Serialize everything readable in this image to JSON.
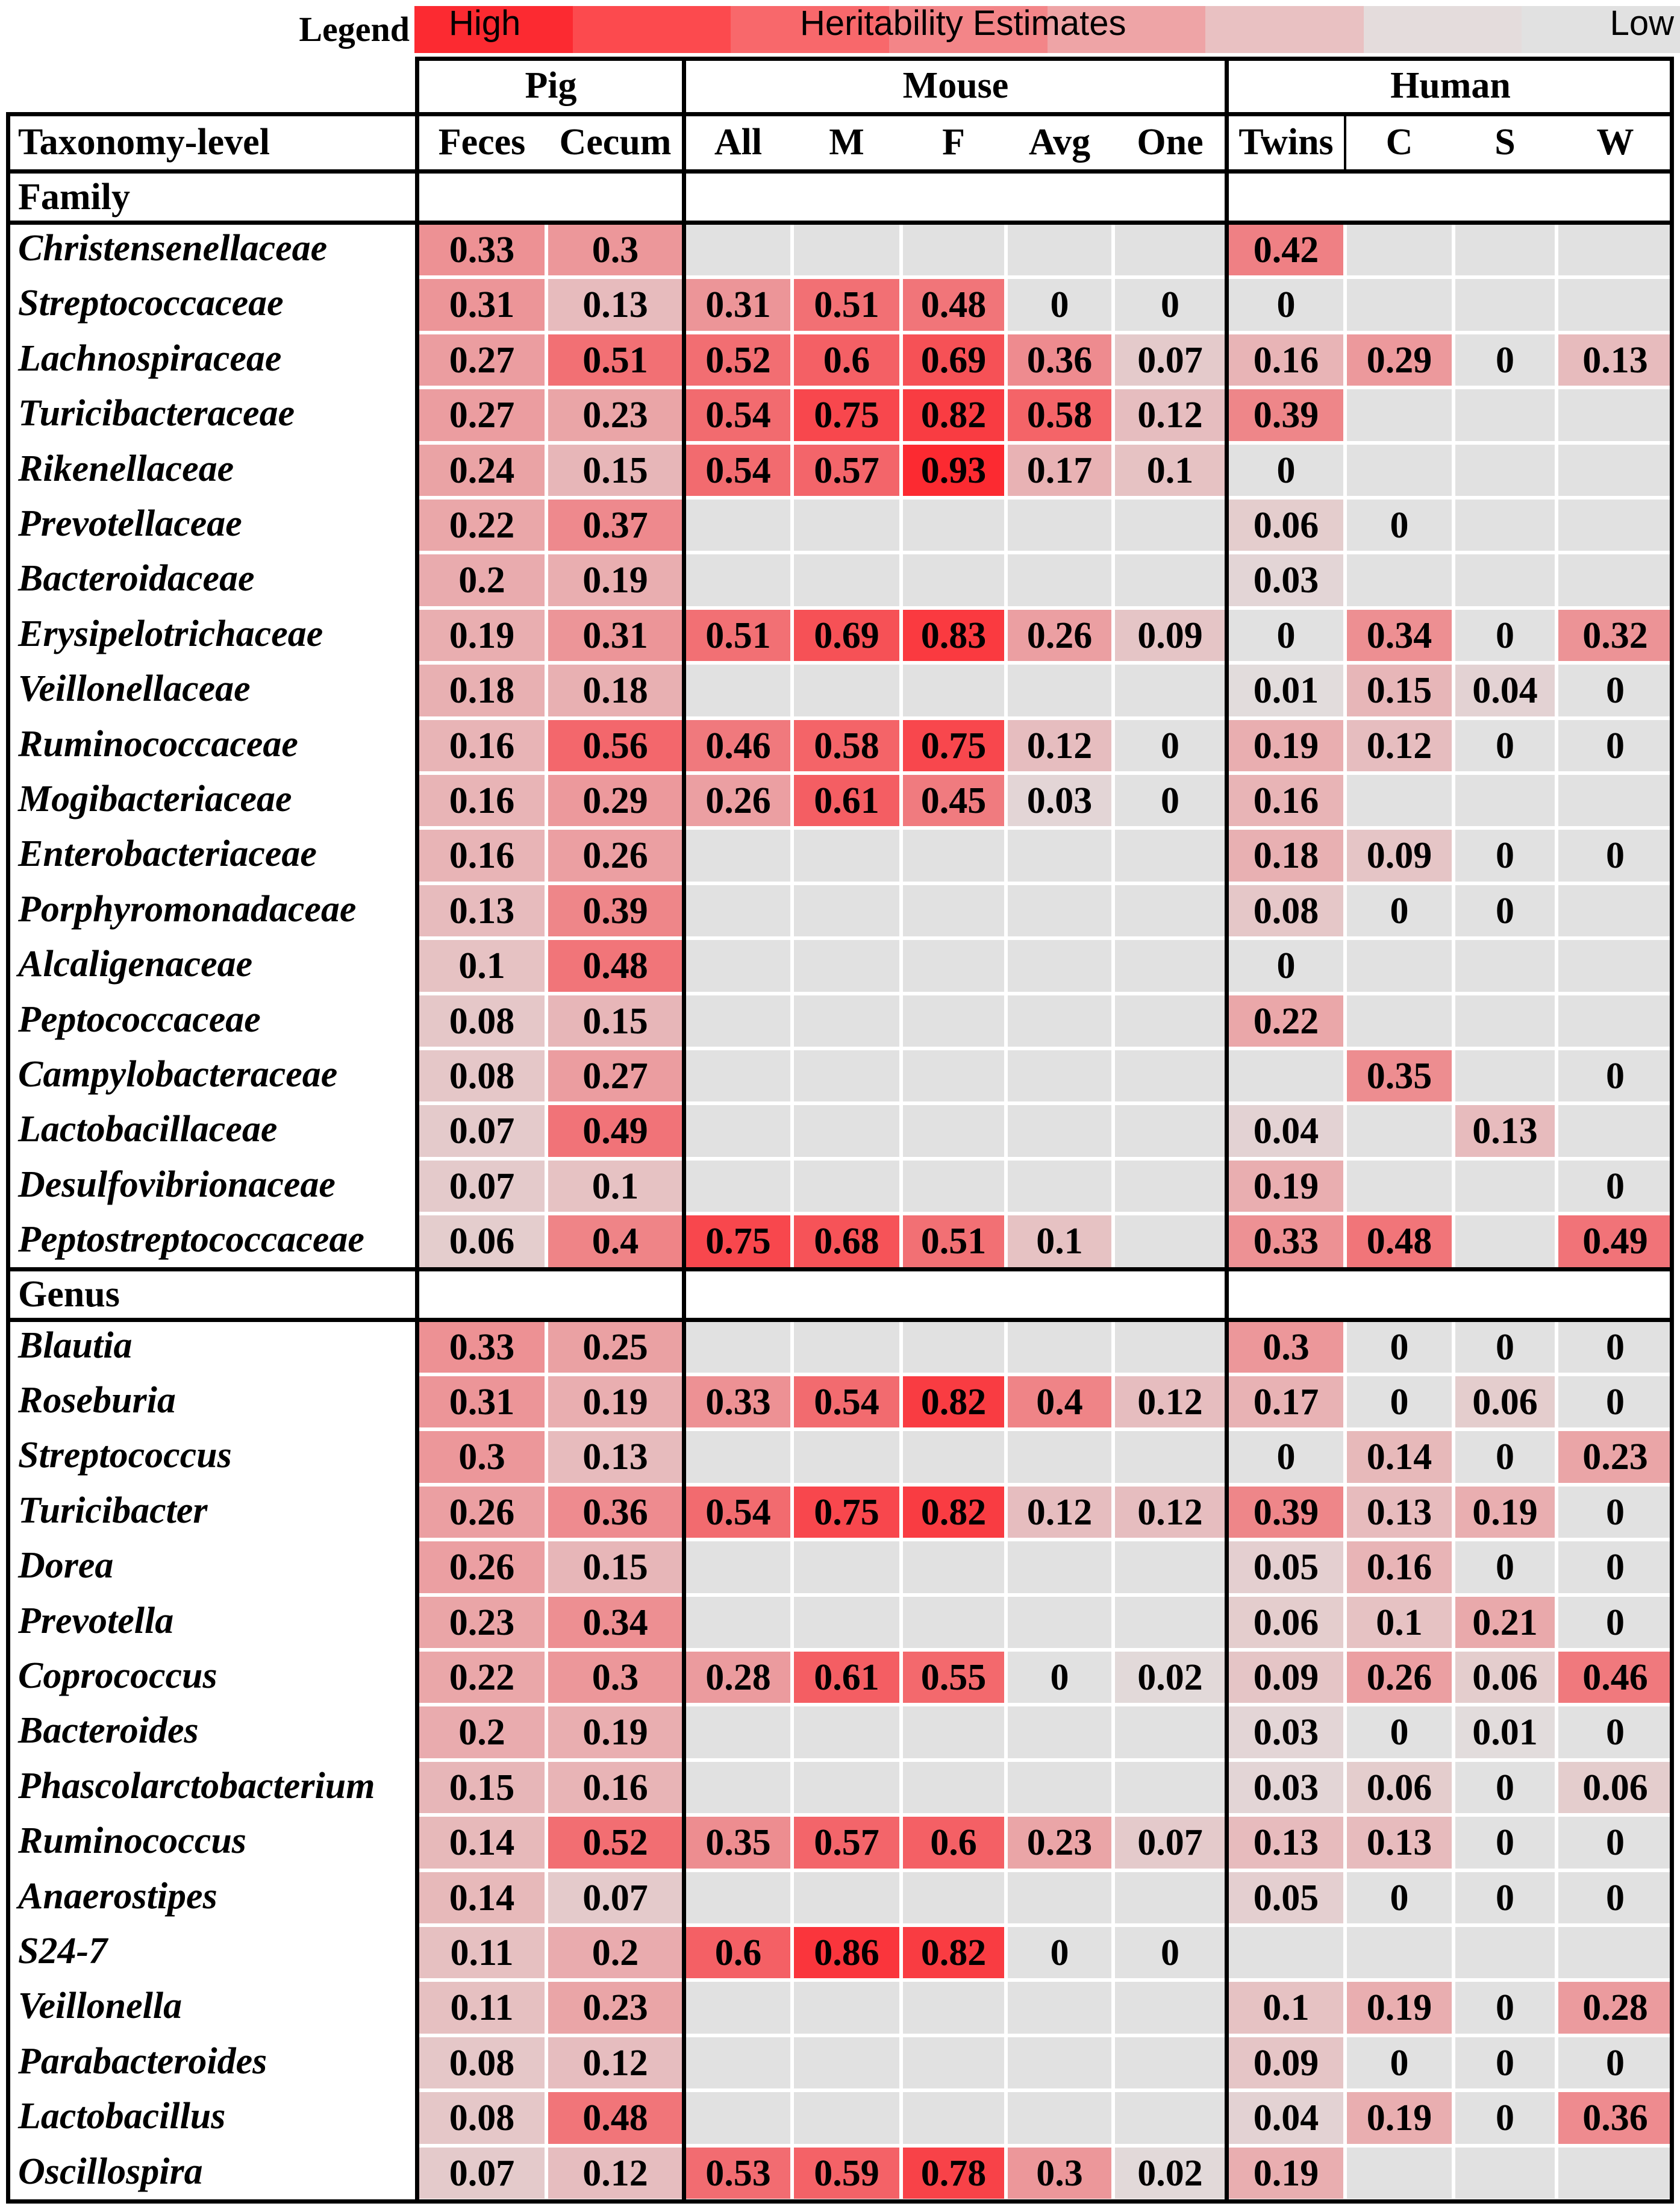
{
  "legend": {
    "label": "Legend",
    "high": "High",
    "title": "Heritability Estimates",
    "low": "Low",
    "colors": [
      "#fc2a31",
      "#fc4a4e",
      "#f8686b",
      "#f38588",
      "#eea4a6",
      "#e9c1c2",
      "#e4dcdc",
      "#e1e1e1"
    ]
  },
  "table": {
    "groups": [
      "Pig",
      "Mouse",
      "Human"
    ],
    "header": [
      "Taxonomy-level",
      "Feces",
      "Cecum",
      "All",
      "M",
      "F",
      "Avg",
      "One",
      "Twins",
      "C",
      "S",
      "W"
    ],
    "sections": [
      {
        "title": "Family",
        "rows": [
          {
            "taxon": "Christensenellaceae",
            "values": [
              "0.33",
              "0.3",
              "",
              "",
              "",
              "",
              "",
              "0.42",
              "",
              "",
              ""
            ]
          },
          {
            "taxon": "Streptococcaceae",
            "values": [
              "0.31",
              "0.13",
              "0.31",
              "0.51",
              "0.48",
              "0",
              "0",
              "0",
              "",
              "",
              ""
            ]
          },
          {
            "taxon": "Lachnospiraceae",
            "values": [
              "0.27",
              "0.51",
              "0.52",
              "0.6",
              "0.69",
              "0.36",
              "0.07",
              "0.16",
              "0.29",
              "0",
              "0.13"
            ]
          },
          {
            "taxon": "Turicibacteraceae",
            "values": [
              "0.27",
              "0.23",
              "0.54",
              "0.75",
              "0.82",
              "0.58",
              "0.12",
              "0.39",
              "",
              "",
              ""
            ]
          },
          {
            "taxon": "Rikenellaceae",
            "values": [
              "0.24",
              "0.15",
              "0.54",
              "0.57",
              "0.93",
              "0.17",
              "0.1",
              "0",
              "",
              "",
              ""
            ]
          },
          {
            "taxon": "Prevotellaceae",
            "values": [
              "0.22",
              "0.37",
              "",
              "",
              "",
              "",
              "",
              "0.06",
              "0",
              "",
              ""
            ]
          },
          {
            "taxon": "Bacteroidaceae",
            "values": [
              "0.2",
              "0.19",
              "",
              "",
              "",
              "",
              "",
              "0.03",
              "",
              "",
              ""
            ]
          },
          {
            "taxon": "Erysipelotrichaceae",
            "values": [
              "0.19",
              "0.31",
              "0.51",
              "0.69",
              "0.83",
              "0.26",
              "0.09",
              "0",
              "0.34",
              "0",
              "0.32"
            ]
          },
          {
            "taxon": "Veillonellaceae",
            "values": [
              "0.18",
              "0.18",
              "",
              "",
              "",
              "",
              "",
              "0.01",
              "0.15",
              "0.04",
              "0"
            ]
          },
          {
            "taxon": "Ruminococcaceae",
            "values": [
              "0.16",
              "0.56",
              "0.46",
              "0.58",
              "0.75",
              "0.12",
              "0",
              "0.19",
              "0.12",
              "0",
              "0"
            ]
          },
          {
            "taxon": "Mogibacteriaceae",
            "values": [
              "0.16",
              "0.29",
              "0.26",
              "0.61",
              "0.45",
              "0.03",
              "0",
              "0.16",
              "",
              "",
              ""
            ]
          },
          {
            "taxon": "Enterobacteriaceae",
            "values": [
              "0.16",
              "0.26",
              "",
              "",
              "",
              "",
              "",
              "0.18",
              "0.09",
              "0",
              "0"
            ]
          },
          {
            "taxon": "Porphyromonadaceae",
            "values": [
              "0.13",
              "0.39",
              "",
              "",
              "",
              "",
              "",
              "0.08",
              "0",
              "0",
              ""
            ]
          },
          {
            "taxon": "Alcaligenaceae",
            "values": [
              "0.1",
              "0.48",
              "",
              "",
              "",
              "",
              "",
              "0",
              "",
              "",
              ""
            ]
          },
          {
            "taxon": "Peptococcaceae",
            "values": [
              "0.08",
              "0.15",
              "",
              "",
              "",
              "",
              "",
              "0.22",
              "",
              "",
              ""
            ]
          },
          {
            "taxon": "Campylobacteraceae",
            "values": [
              "0.08",
              "0.27",
              "",
              "",
              "",
              "",
              "",
              "",
              "0.35",
              "",
              "0"
            ]
          },
          {
            "taxon": "Lactobacillaceae",
            "values": [
              "0.07",
              "0.49",
              "",
              "",
              "",
              "",
              "",
              "0.04",
              "",
              "0.13",
              ""
            ]
          },
          {
            "taxon": "Desulfovibrionaceae",
            "values": [
              "0.07",
              "0.1",
              "",
              "",
              "",
              "",
              "",
              "0.19",
              "",
              "",
              "0"
            ]
          },
          {
            "taxon": "Peptostreptococcaceae",
            "values": [
              "0.06",
              "0.4",
              "0.75",
              "0.68",
              "0.51",
              "0.1",
              "",
              "0.33",
              "0.48",
              "",
              "0.49"
            ]
          }
        ]
      },
      {
        "title": "Genus",
        "rows": [
          {
            "taxon": "Blautia",
            "values": [
              "0.33",
              "0.25",
              "",
              "",
              "",
              "",
              "",
              "0.3",
              "0",
              "0",
              "0"
            ]
          },
          {
            "taxon": "Roseburia",
            "values": [
              "0.31",
              "0.19",
              "0.33",
              "0.54",
              "0.82",
              "0.4",
              "0.12",
              "0.17",
              "0",
              "0.06",
              "0"
            ]
          },
          {
            "taxon": "Streptococcus",
            "values": [
              "0.3",
              "0.13",
              "",
              "",
              "",
              "",
              "",
              "0",
              "0.14",
              "0",
              "0.23"
            ]
          },
          {
            "taxon": "Turicibacter",
            "values": [
              "0.26",
              "0.36",
              "0.54",
              "0.75",
              "0.82",
              "0.12",
              "0.12",
              "0.39",
              "0.13",
              "0.19",
              "0"
            ]
          },
          {
            "taxon": "Dorea",
            "values": [
              "0.26",
              "0.15",
              "",
              "",
              "",
              "",
              "",
              "0.05",
              "0.16",
              "0",
              "0"
            ]
          },
          {
            "taxon": "Prevotella",
            "values": [
              "0.23",
              "0.34",
              "",
              "",
              "",
              "",
              "",
              "0.06",
              "0.1",
              "0.21",
              "0"
            ]
          },
          {
            "taxon": "Coprococcus",
            "values": [
              "0.22",
              "0.3",
              "0.28",
              "0.61",
              "0.55",
              "0",
              "0.02",
              "0.09",
              "0.26",
              "0.06",
              "0.46"
            ]
          },
          {
            "taxon": "Bacteroides",
            "values": [
              "0.2",
              "0.19",
              "",
              "",
              "",
              "",
              "",
              "0.03",
              "0",
              "0.01",
              "0"
            ]
          },
          {
            "taxon": "Phascolarctobacterium",
            "values": [
              "0.15",
              "0.16",
              "",
              "",
              "",
              "",
              "",
              "0.03",
              "0.06",
              "0",
              "0.06"
            ]
          },
          {
            "taxon": "Ruminococcus",
            "values": [
              "0.14",
              "0.52",
              "0.35",
              "0.57",
              "0.6",
              "0.23",
              "0.07",
              "0.13",
              "0.13",
              "0",
              "0"
            ]
          },
          {
            "taxon": "Anaerostipes",
            "values": [
              "0.14",
              "0.07",
              "",
              "",
              "",
              "",
              "",
              "0.05",
              "0",
              "0",
              "0"
            ]
          },
          {
            "taxon": "S24-7",
            "values": [
              "0.11",
              "0.2",
              "0.6",
              "0.86",
              "0.82",
              "0",
              "0",
              "",
              "",
              "",
              ""
            ]
          },
          {
            "taxon": "Veillonella",
            "values": [
              "0.11",
              "0.23",
              "",
              "",
              "",
              "",
              "",
              "0.1",
              "0.19",
              "0",
              "0.28"
            ]
          },
          {
            "taxon": "Parabacteroides",
            "values": [
              "0.08",
              "0.12",
              "",
              "",
              "",
              "",
              "",
              "0.09",
              "0",
              "0",
              "0"
            ]
          },
          {
            "taxon": "Lactobacillus",
            "values": [
              "0.08",
              "0.48",
              "",
              "",
              "",
              "",
              "",
              "0.04",
              "0.19",
              "0",
              "0.36"
            ]
          },
          {
            "taxon": "Oscillospira",
            "values": [
              "0.07",
              "0.12",
              "0.53",
              "0.59",
              "0.78",
              "0.3",
              "0.02",
              "0.19",
              "",
              "",
              ""
            ]
          }
        ]
      }
    ]
  },
  "chart_data": {
    "type": "heatmap",
    "title": "Heritability Estimates",
    "color_scale": {
      "high": "#fc2a31",
      "low": "#e1e1e1",
      "range": [
        0,
        0.93
      ]
    },
    "column_groups": [
      {
        "name": "Pig",
        "columns": [
          "Feces",
          "Cecum"
        ]
      },
      {
        "name": "Mouse",
        "columns": [
          "All",
          "M",
          "F",
          "Avg",
          "One"
        ]
      },
      {
        "name": "Human",
        "columns": [
          "Twins",
          "C",
          "S",
          "W"
        ]
      }
    ]
  }
}
